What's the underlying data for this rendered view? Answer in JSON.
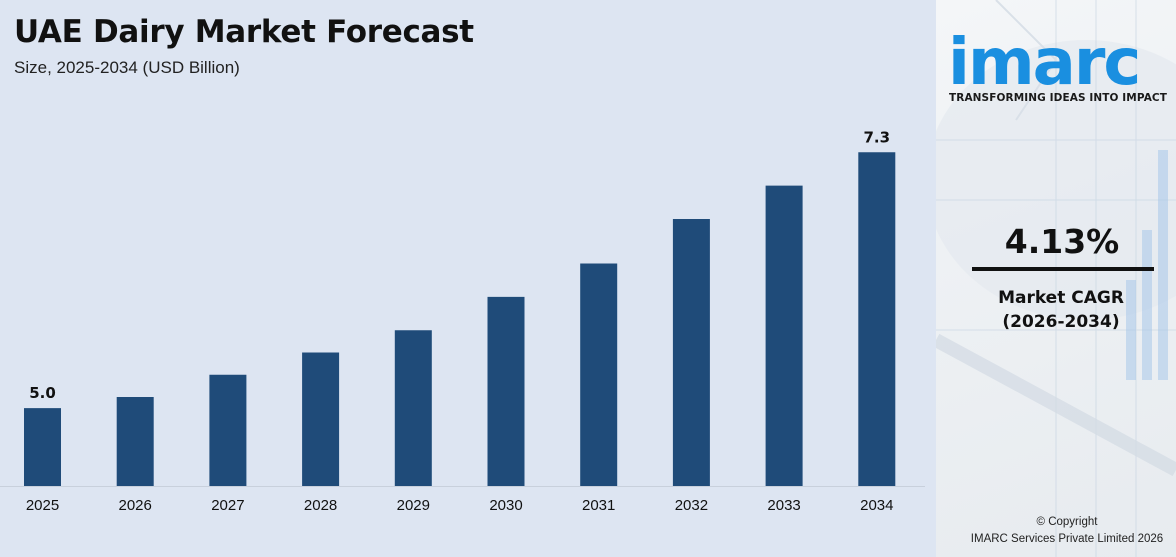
{
  "chart_data": {
    "type": "bar",
    "title": "UAE Dairy Market Forecast",
    "subtitle": "Size, 2025-2034 (USD Billion)",
    "categories": [
      "2025",
      "2026",
      "2027",
      "2028",
      "2029",
      "2030",
      "2031",
      "2032",
      "2033",
      "2034"
    ],
    "values": [
      5.0,
      5.1,
      5.3,
      5.5,
      5.7,
      6.0,
      6.3,
      6.7,
      7.0,
      7.3
    ],
    "data_labels": {
      "0": "5.0",
      "9": "7.3"
    },
    "ylim": [
      4.3,
      7.5
    ],
    "bar_color": "#1f4b79",
    "grid": false,
    "legend": "none"
  },
  "brand": {
    "logo_text": "imarc",
    "logo_color": "#1a8fe0",
    "tagline": "TRANSFORMING IDEAS INTO IMPACT"
  },
  "cagr": {
    "value": "4.13%",
    "label_line1": "Market CAGR",
    "label_line2": "(2026-2034)"
  },
  "footer": {
    "copyright_line1": "© Copyright",
    "copyright_line2": "IMARC Services Private Limited 2026"
  }
}
